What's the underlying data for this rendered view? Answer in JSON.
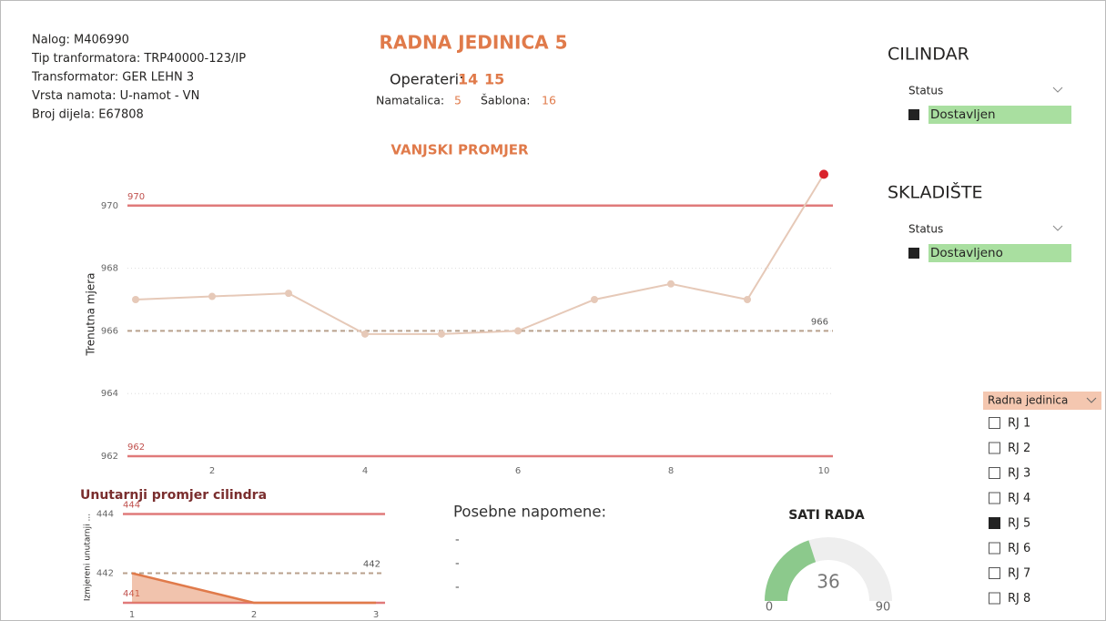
{
  "info": [
    "Nalog: M406990",
    "Tip tranformatora:  TRP40000-123/IP",
    "Transformator: GER LEHN 3",
    "Vrsta namota: U-namot - VN",
    "Broj dijela: E67808"
  ],
  "header": {
    "title": "RADNA JEDINICA 5",
    "operators_label": "Operateri:",
    "operators": [
      14,
      15
    ],
    "namatalica_label": "Namatalica:",
    "namatalica": 5,
    "sablona_label": "Šablona:",
    "sablona": 16
  },
  "chart_data": [
    {
      "type": "line",
      "title": "VANJSKI PROMJER",
      "y_label": "Trenutna mjera",
      "x": [
        1,
        2,
        3,
        4,
        5,
        6,
        7,
        8,
        9,
        10
      ],
      "series": [
        {
          "color": "#e6c9b8",
          "values": [
            967,
            967.1,
            967.2,
            965.9,
            965.9,
            966,
            967,
            967.5,
            967,
            971
          ]
        }
      ],
      "outlier_color": "#d9222a",
      "xlim": [
        1,
        10
      ],
      "ylim": [
        962,
        971
      ],
      "xticks": [
        2,
        4,
        6,
        8,
        10
      ],
      "yticks": [
        962,
        964,
        966,
        968,
        970
      ],
      "grid": true,
      "reference_lines": [
        {
          "value": 970,
          "style": "solid",
          "color": "#e07a7a"
        },
        {
          "value": 962,
          "style": "solid",
          "color": "#e07a7a"
        },
        {
          "value": 966,
          "style": "dashed",
          "color": "#b8a08c"
        }
      ]
    },
    {
      "type": "area",
      "title": "Unutarnji promjer cilindra",
      "y_label": "Izmjereni unutarnji ...",
      "x": [
        1,
        2,
        3
      ],
      "series": [
        {
          "color": "#e07a4a",
          "values": [
            442,
            441,
            441
          ]
        }
      ],
      "xlim": [
        1,
        3
      ],
      "ylim": [
        441,
        444
      ],
      "xticks": [
        1,
        2,
        3
      ],
      "yticks": [
        442,
        444
      ],
      "grid": false,
      "reference_lines": [
        {
          "value": 444,
          "style": "solid",
          "color": "#e07a7a"
        },
        {
          "value": 441,
          "style": "solid",
          "color": "#e07a7a"
        },
        {
          "value": 442,
          "style": "dashed",
          "color": "#b8a08c"
        }
      ]
    },
    {
      "type": "gauge",
      "title": "SATI RADA",
      "value": 36,
      "min": 0,
      "max": 90,
      "color": "#8cc98c"
    }
  ],
  "notes": {
    "title": "Posebne napomene:",
    "lines": [
      "-",
      "-",
      "-"
    ]
  },
  "slicers": [
    {
      "title": "CILINDAR",
      "field": "Status",
      "selected": "Dostavljen"
    },
    {
      "title": "SKLADIŠTE",
      "field": "Status",
      "selected": "Dostavljeno"
    }
  ],
  "rj_slicer": {
    "field": "Radna jedinica",
    "items": [
      "RJ 1",
      "RJ 2",
      "RJ 3",
      "RJ 4",
      "RJ 5",
      "RJ 6",
      "RJ 7",
      "RJ 8"
    ],
    "checked": [
      false,
      false,
      false,
      false,
      true,
      false,
      false,
      false
    ]
  }
}
